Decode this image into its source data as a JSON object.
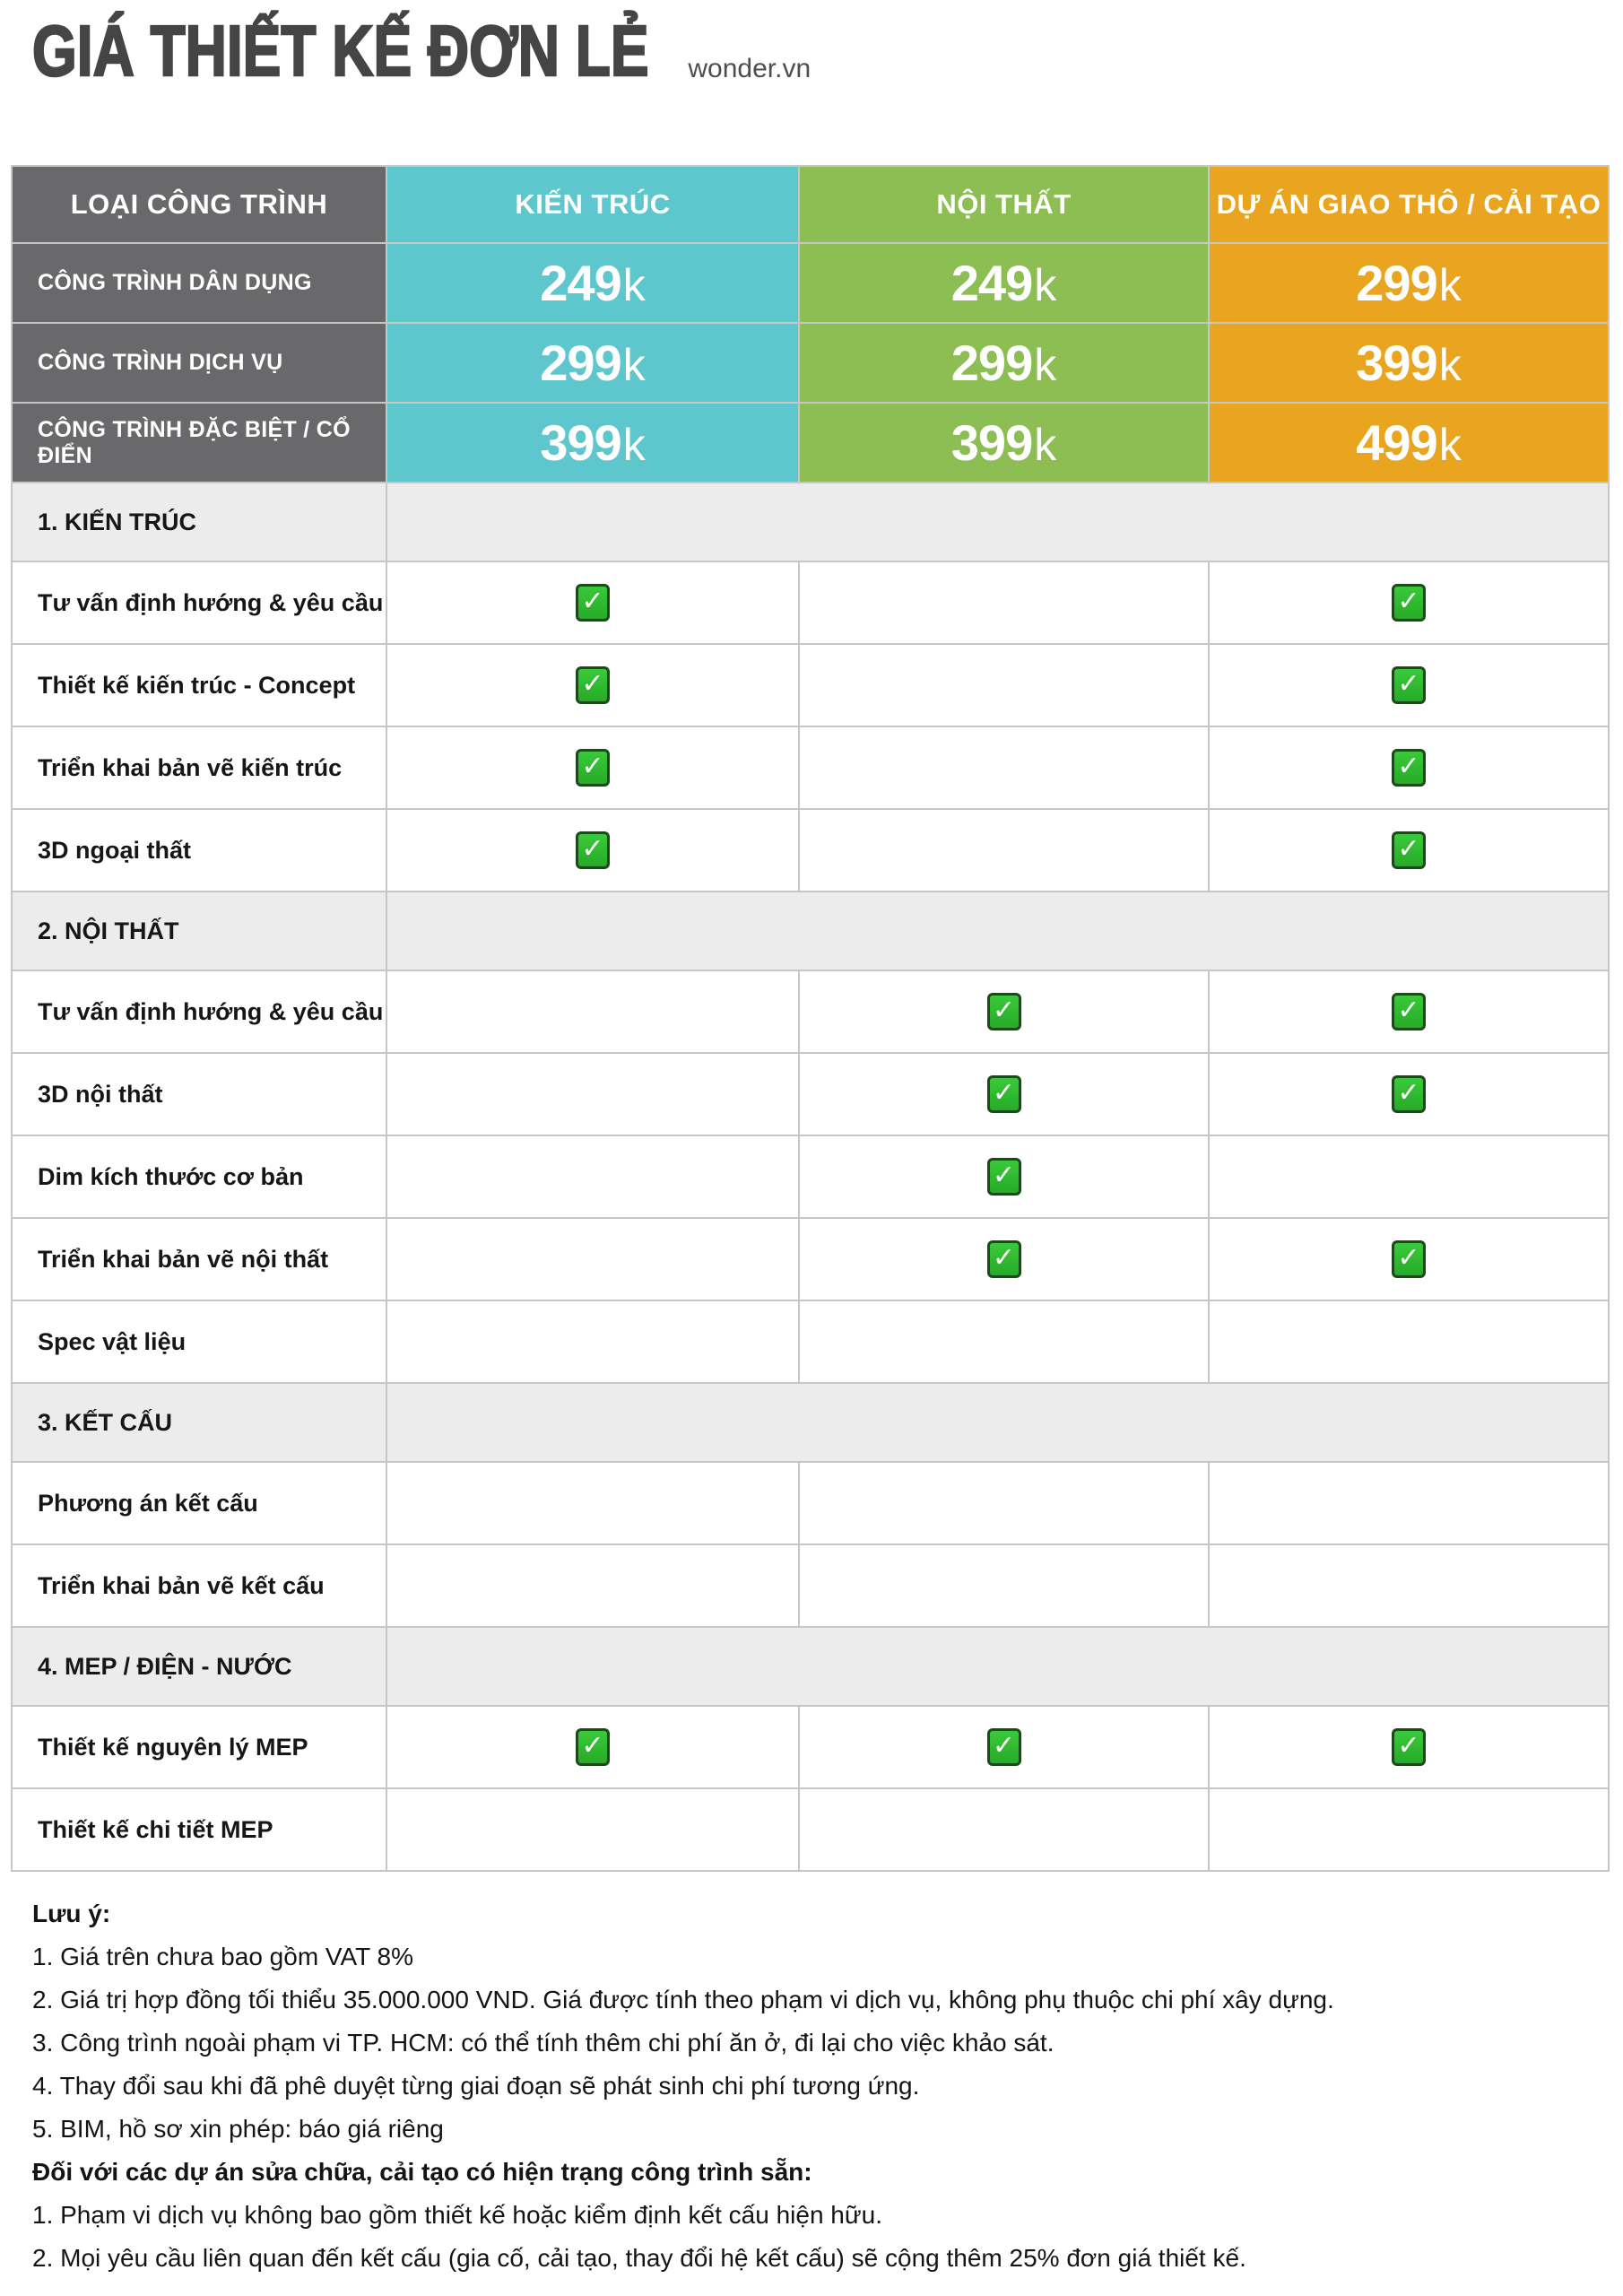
{
  "page": {
    "title": "GIÁ THIẾT KẾ ĐƠN LẺ",
    "brand": "wonder.vn"
  },
  "colors": {
    "column_architecture": "#5ec7ce",
    "column_interior": "#8dbe53",
    "column_project": "#e9a51f",
    "header_dark": "#69696b",
    "section_bg": "#ececec",
    "check_green": "#2fbf2f",
    "title_text": "#454545"
  },
  "icons": {
    "check": "✓"
  },
  "table": {
    "columns": [
      "LOẠI CÔNG TRÌNH",
      "KIẾN TRÚC",
      "NỘI THẤT",
      "DỰ ÁN GIAO THÔ / CẢI TẠO"
    ],
    "price_rows": [
      {
        "label": "CÔNG TRÌNH DÂN DỤNG",
        "prices": [
          {
            "num": "249",
            "suffix": "k"
          },
          {
            "num": "249",
            "suffix": "k"
          },
          {
            "num": "299",
            "suffix": "k"
          }
        ]
      },
      {
        "label": "CÔNG TRÌNH DỊCH VỤ",
        "prices": [
          {
            "num": "299",
            "suffix": "k"
          },
          {
            "num": "299",
            "suffix": "k"
          },
          {
            "num": "399",
            "suffix": "k"
          }
        ]
      },
      {
        "label": "CÔNG TRÌNH ĐẶC BIỆT / CỔ ĐIỂN",
        "prices": [
          {
            "num": "399",
            "suffix": "k"
          },
          {
            "num": "399",
            "suffix": "k"
          },
          {
            "num": "499",
            "suffix": "k"
          }
        ]
      }
    ],
    "sections": [
      {
        "title": "1. KIẾN TRÚC",
        "rows": [
          {
            "label": "Tư vấn định hướng & yêu cầu",
            "checks": [
              true,
              false,
              true
            ]
          },
          {
            "label": "Thiết kế kiến trúc - Concept",
            "checks": [
              true,
              false,
              true
            ]
          },
          {
            "label": "Triển khai bản vẽ kiến trúc",
            "checks": [
              true,
              false,
              true
            ]
          },
          {
            "label": "3D ngoại thất",
            "checks": [
              true,
              false,
              true
            ]
          }
        ]
      },
      {
        "title": "2. NỘI THẤT",
        "rows": [
          {
            "label": "Tư vấn định hướng & yêu cầu",
            "checks": [
              false,
              true,
              true
            ]
          },
          {
            "label": "3D nội thất",
            "checks": [
              false,
              true,
              true
            ]
          },
          {
            "label": "Dim kích thước cơ bản",
            "checks": [
              false,
              true,
              false
            ]
          },
          {
            "label": "Triển khai bản vẽ nội thất",
            "checks": [
              false,
              true,
              true
            ]
          },
          {
            "label": "Spec vật liệu",
            "checks": [
              false,
              false,
              false
            ]
          }
        ]
      },
      {
        "title": "3. KẾT CẤU",
        "rows": [
          {
            "label": "Phương án kết cấu",
            "checks": [
              false,
              false,
              false
            ]
          },
          {
            "label": "Triển khai bản vẽ kết cấu",
            "checks": [
              false,
              false,
              false
            ]
          }
        ]
      },
      {
        "title": "4. MEP / ĐIỆN - NƯỚC",
        "rows": [
          {
            "label": "Thiết kế nguyên lý MEP",
            "checks": [
              true,
              true,
              true
            ]
          },
          {
            "label": "Thiết kế chi tiết MEP",
            "checks": [
              false,
              false,
              false
            ]
          }
        ]
      }
    ]
  },
  "notes": {
    "heading": "Lưu ý:",
    "items": [
      "1. Giá trên chưa bao gồm VAT 8%",
      "2. Giá trị hợp đồng tối thiểu 35.000.000 VND. Giá được tính theo phạm vi dịch vụ, không phụ thuộc chi phí xây dựng.",
      "3. Công trình ngoài phạm vi TP. HCM: có thể tính thêm chi phí ăn ở, đi lại cho việc khảo sát.",
      "4. Thay đổi sau khi đã phê duyệt từng giai đoạn sẽ phát sinh chi phí tương ứng.",
      "5. BIM, hồ sơ xin phép: báo giá riêng"
    ],
    "subheading": "Đối với các dự án sửa chữa, cải tạo có hiện trạng công trình sẵn:",
    "subitems": [
      "1. Phạm vi dịch vụ không bao gồm thiết kế hoặc kiểm định kết cấu hiện hữu.",
      "2. Mọi yêu cầu liên quan đến kết cấu (gia cố, cải tạo, thay đổi hệ kết cấu) sẽ cộng thêm 25% đơn giá thiết kế."
    ]
  }
}
